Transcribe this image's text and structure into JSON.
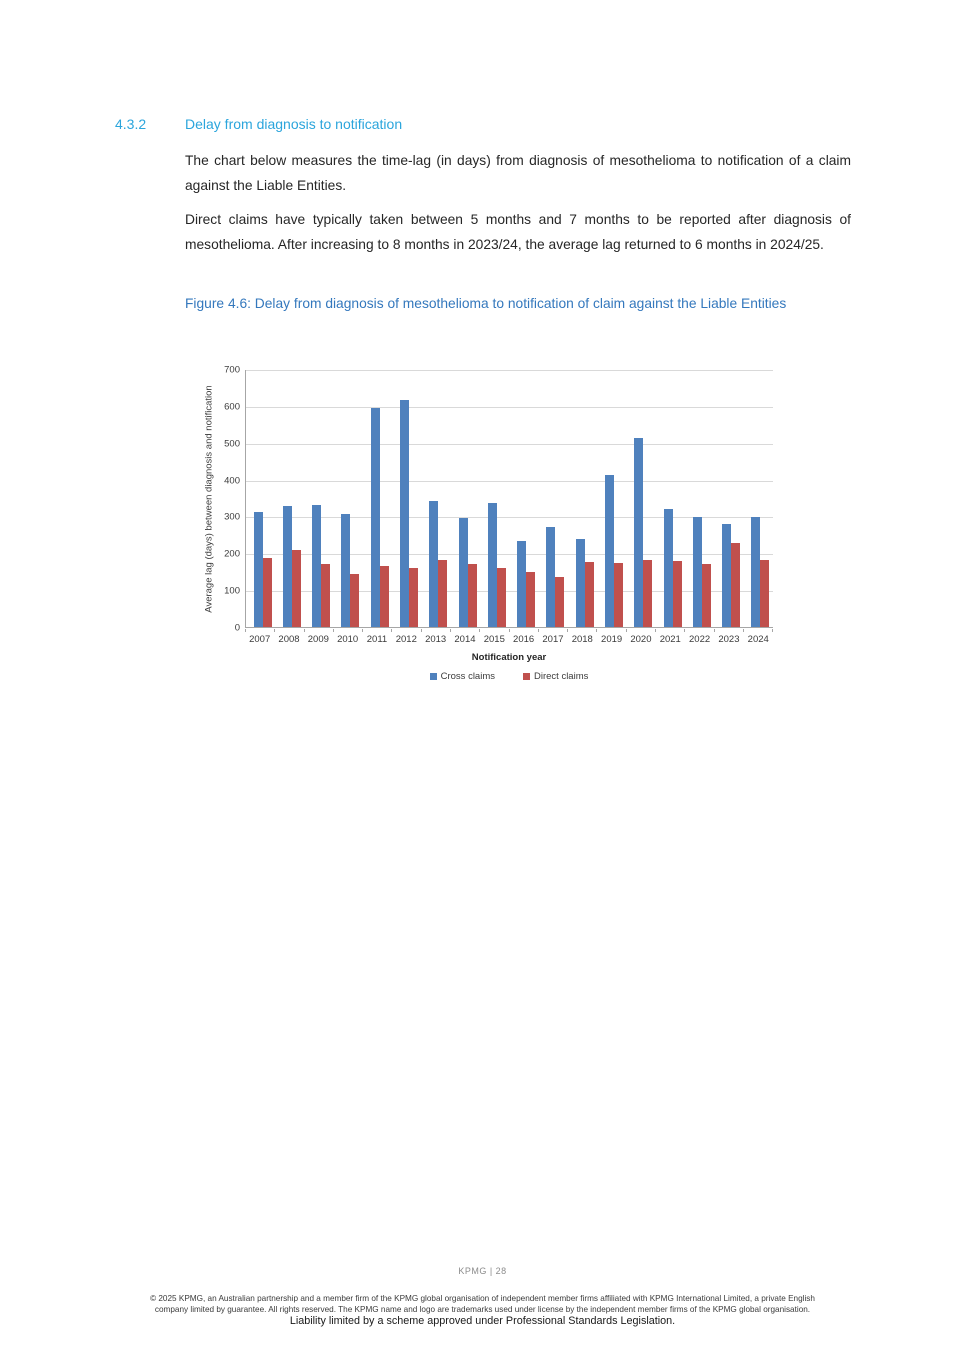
{
  "section": {
    "number": "4.3.2",
    "title": "Delay from diagnosis to notification"
  },
  "paragraphs": {
    "p1": "The chart below measures the time-lag (in days) from diagnosis of mesothelioma to notification of a claim against the Liable Entities.",
    "p2": "Direct claims have typically taken between 5 months and 7 months to be reported after diagnosis of mesothelioma. After increasing to 8 months in 2023/24, the average lag returned to 6 months in 2024/25."
  },
  "figure": {
    "caption": "Figure 4.6: Delay from diagnosis of mesothelioma to notification of claim against the Liable Entities"
  },
  "chart_data": {
    "type": "bar",
    "title": "",
    "categories": [
      "2007",
      "2008",
      "2009",
      "2010",
      "2011",
      "2012",
      "2013",
      "2014",
      "2015",
      "2016",
      "2017",
      "2018",
      "2019",
      "2020",
      "2021",
      "2022",
      "2023",
      "2024"
    ],
    "series": [
      {
        "name": "Cross claims",
        "color": "#4F81BD",
        "values": [
          312,
          327,
          330,
          306,
          595,
          617,
          343,
          295,
          337,
          233,
          271,
          240,
          413,
          512,
          320,
          298,
          280,
          298
        ]
      },
      {
        "name": "Direct claims",
        "color": "#C0504D",
        "values": [
          188,
          209,
          172,
          143,
          166,
          159,
          183,
          172,
          161,
          149,
          135,
          176,
          175,
          183,
          180,
          171,
          229,
          181
        ]
      }
    ],
    "xlabel": "Notification year",
    "ylabel": "Average lag (days) between diagnosis and notification",
    "ylim": [
      0,
      700
    ],
    "ytick_step": 100,
    "grid": true,
    "legend_position": "bottom"
  },
  "colors": {
    "section_heading_blue": "#2BA5DC",
    "figure_caption_blue": "#3478BD",
    "bar_blue": "#4F81BD",
    "bar_red": "#C0504D",
    "gridline_gray": "#D9D9D9",
    "axis_gray": "#A6A6A6"
  },
  "footer": {
    "page_label": "KPMG | 28",
    "line1": "© 2025 KPMG, an Australian partnership and a member firm of the KPMG global organisation of independent member firms affiliated with KPMG International Limited, a private English",
    "line2": "company limited by guarantee. All rights reserved. The KPMG name and logo are trademarks used under license by the independent member firms of the KPMG global organisation.",
    "line3": "Liability limited by a scheme approved under Professional Standards Legislation."
  }
}
